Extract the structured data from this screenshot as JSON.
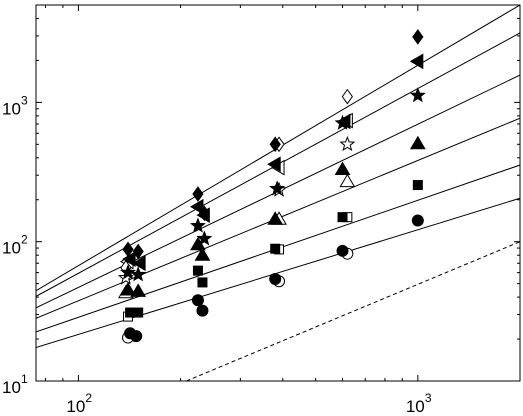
{
  "chart_data": {
    "type": "scatter",
    "title": "",
    "xlabel": "",
    "ylabel": "",
    "xscale": "log",
    "yscale": "log",
    "xlim": [
      75,
      2000
    ],
    "ylim": [
      10,
      5000
    ],
    "grid": false,
    "legend": "none",
    "x_ticks": [
      {
        "value": 100,
        "base": "10",
        "exp": "2"
      },
      {
        "value": 1000,
        "base": "10",
        "exp": "3"
      }
    ],
    "y_ticks": [
      {
        "value": 10,
        "base": "10",
        "exp": "1"
      },
      {
        "value": 100,
        "base": "10",
        "exp": "2"
      },
      {
        "value": 1000,
        "base": "10",
        "exp": "3"
      }
    ],
    "series": [
      {
        "marker": "filled-circle",
        "points": [
          [
            142,
            22
          ],
          [
            148,
            21
          ],
          [
            225,
            38
          ],
          [
            232,
            32
          ],
          [
            380,
            54
          ],
          [
            600,
            86
          ],
          [
            1000,
            142
          ]
        ],
        "fit": [
          [
            75,
            17.4
          ],
          [
            2000,
            205
          ]
        ]
      },
      {
        "marker": "open-circle",
        "points": [
          [
            140,
            20.5
          ],
          [
            390,
            52
          ],
          [
            620,
            82
          ]
        ],
        "fit": null
      },
      {
        "marker": "filled-square",
        "points": [
          [
            142,
            31
          ],
          [
            150,
            31
          ],
          [
            225,
            62
          ],
          [
            232,
            51
          ],
          [
            380,
            89
          ],
          [
            600,
            150
          ],
          [
            1000,
            255
          ]
        ],
        "fit": [
          [
            75,
            22.5
          ],
          [
            2000,
            355
          ]
        ]
      },
      {
        "marker": "open-square",
        "points": [
          [
            140,
            29
          ],
          [
            390,
            88
          ],
          [
            620,
            150
          ]
        ],
        "fit": null
      },
      {
        "marker": "filled-triangle",
        "points": [
          [
            140,
            45
          ],
          [
            150,
            44
          ],
          [
            225,
            95
          ],
          [
            232,
            80
          ],
          [
            380,
            145
          ],
          [
            600,
            330
          ],
          [
            1000,
            505
          ]
        ],
        "fit": [
          [
            75,
            28.2
          ],
          [
            2000,
            770
          ]
        ]
      },
      {
        "marker": "open-triangle",
        "points": [
          [
            138,
            43
          ],
          [
            390,
            145
          ],
          [
            620,
            270
          ]
        ],
        "fit": null
      },
      {
        "marker": "filled-star",
        "points": [
          [
            140,
            60
          ],
          [
            150,
            58
          ],
          [
            225,
            130
          ],
          [
            235,
            105
          ],
          [
            385,
            240
          ],
          [
            600,
            710
          ],
          [
            1000,
            1120
          ]
        ],
        "fit": [
          [
            75,
            33.5
          ],
          [
            2000,
            1570
          ]
        ]
      },
      {
        "marker": "open-star",
        "points": [
          [
            138,
            55
          ],
          [
            390,
            235
          ],
          [
            620,
            500
          ]
        ],
        "fit": null
      },
      {
        "marker": "filled-left-triangle",
        "points": [
          [
            142,
            75
          ],
          [
            152,
            70
          ],
          [
            225,
            178
          ],
          [
            235,
            155
          ],
          [
            380,
            360
          ],
          [
            610,
            730
          ],
          [
            1000,
            1970
          ]
        ],
        "fit": [
          [
            75,
            40.5
          ],
          [
            2000,
            3150
          ]
        ]
      },
      {
        "marker": "open-left-triangle",
        "points": [
          [
            140,
            72
          ],
          [
            390,
            340
          ],
          [
            620,
            740
          ]
        ],
        "fit": null
      },
      {
        "marker": "filled-diamond",
        "points": [
          [
            140,
            88
          ],
          [
            150,
            85
          ],
          [
            225,
            220
          ],
          [
            235,
            160
          ],
          [
            380,
            500
          ],
          [
            1000,
            2950
          ]
        ],
        "fit": [
          [
            75,
            44.5
          ],
          [
            2000,
            5000
          ]
        ]
      },
      {
        "marker": "open-diamond",
        "points": [
          [
            138,
            65
          ],
          [
            390,
            500
          ],
          [
            620,
            1100
          ]
        ],
        "fit": null
      }
    ],
    "reference_line": {
      "style": "dashed",
      "points": [
        [
          208,
          10
        ],
        [
          2000,
          100
        ]
      ]
    }
  }
}
